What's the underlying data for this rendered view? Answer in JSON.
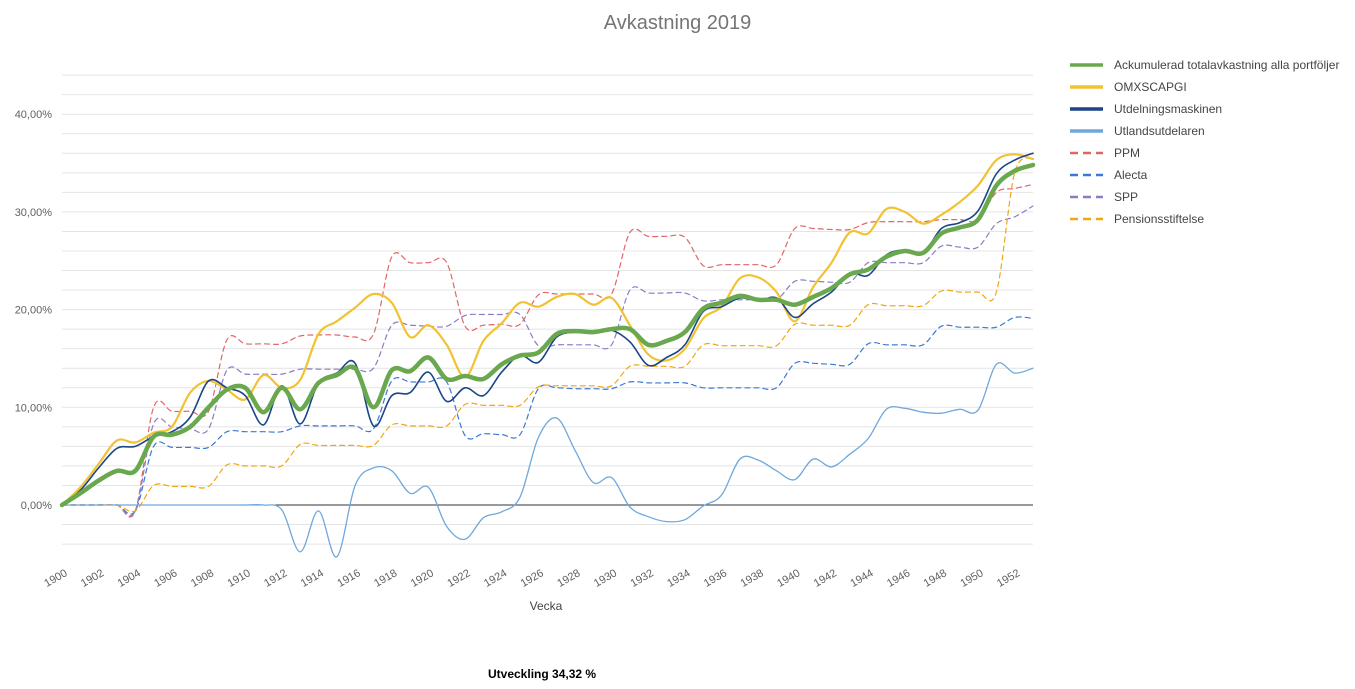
{
  "chart_data": {
    "type": "line",
    "title": "Avkastning 2019",
    "xlabel": "Vecka",
    "ylabel": "",
    "x": [
      1900,
      1901,
      1902,
      1903,
      1904,
      1905,
      1906,
      1907,
      1908,
      1909,
      1910,
      1911,
      1912,
      1913,
      1914,
      1915,
      1916,
      1917,
      1918,
      1919,
      1920,
      1921,
      1922,
      1923,
      1924,
      1925,
      1926,
      1927,
      1928,
      1929,
      1930,
      1931,
      1932,
      1933,
      1934,
      1935,
      1936,
      1937,
      1938,
      1939,
      1940,
      1941,
      1942,
      1943,
      1944,
      1945,
      1946,
      1947,
      1948,
      1949,
      1950,
      1951,
      1952,
      1953
    ],
    "x_tick_labels": [
      "1900",
      "1902",
      "1904",
      "1906",
      "1908",
      "1910",
      "1912",
      "1914",
      "1916",
      "1918",
      "1920",
      "1922",
      "1924",
      "1926",
      "1928",
      "1930",
      "1932",
      "1934",
      "1936",
      "1938",
      "1940",
      "1942",
      "1944",
      "1946",
      "1948",
      "1950",
      "1952"
    ],
    "y_ticks": [
      0,
      10,
      20,
      30,
      40
    ],
    "y_tick_labels": [
      "0,00%",
      "10,00%",
      "20,00%",
      "30,00%",
      "40,00%"
    ],
    "ylim": [
      -5.5,
      45
    ],
    "grid": true,
    "legend_position": "right",
    "series": [
      {
        "name": "Ackumulerad totalavkastning alla portföljer",
        "color": "#6aa84f",
        "width": 4.5,
        "dashed": false,
        "values": [
          0,
          1.2,
          2.5,
          3.5,
          3.5,
          7,
          7.2,
          8,
          10,
          11.8,
          12,
          9.5,
          12,
          9.8,
          12.5,
          13.3,
          14,
          10,
          13.8,
          13.7,
          15.1,
          12.9,
          13.2,
          12.9,
          14.4,
          15.3,
          15.6,
          17.5,
          17.8,
          17.7,
          18,
          18,
          16.4,
          16.8,
          17.7,
          20.1,
          20.7,
          21.4,
          21,
          21,
          20.5,
          21.3,
          22.2,
          23.6,
          24.1,
          25.4,
          26,
          25.8,
          27.8,
          28.4,
          29.2,
          32.7,
          34.2,
          34.8
        ]
      },
      {
        "name": "OMXSCAPGI",
        "color": "#f1c232",
        "width": 2.2,
        "dashed": false,
        "values": [
          0,
          1.8,
          4.2,
          6.6,
          6.4,
          7.4,
          8,
          11.5,
          12.7,
          11.8,
          10.8,
          13.3,
          12,
          12.8,
          17.5,
          18.8,
          20.2,
          21.6,
          20.7,
          17.2,
          18.4,
          16.4,
          13.1,
          16.8,
          18.6,
          20.7,
          20.3,
          21.3,
          21.6,
          20.5,
          21.2,
          18.4,
          15.4,
          14.8,
          16,
          19.1,
          20.3,
          23.2,
          23.3,
          21.8,
          18.8,
          22.3,
          24.8,
          27.9,
          27.8,
          30.3,
          30,
          28.8,
          29.7,
          31,
          32.7,
          35.3,
          35.9,
          35.4
        ]
      },
      {
        "name": "Utdelningsmaskinen",
        "color": "#1c4587",
        "width": 1.6,
        "dashed": false,
        "values": [
          0,
          1.5,
          3.8,
          5.8,
          6,
          7,
          7.5,
          9,
          12.7,
          12,
          11.2,
          8.2,
          12.2,
          8.3,
          12.5,
          13.5,
          14.5,
          8.1,
          11.2,
          11.5,
          13.6,
          10.6,
          12,
          11.2,
          13.6,
          15.3,
          14.6,
          17.2,
          17.7,
          17.8,
          17.9,
          16.7,
          14.3,
          15.1,
          16.4,
          19.8,
          20.3,
          21.2,
          20.9,
          21.2,
          19.2,
          20.6,
          21.8,
          23.7,
          23.5,
          25.6,
          26.1,
          25.8,
          28.3,
          28.9,
          30.1,
          33.9,
          35.3,
          36
        ]
      },
      {
        "name": "Utlandsutdelaren",
        "color": "#6fa8dc",
        "width": 1.3,
        "dashed": false,
        "values": [
          0,
          0,
          0,
          0,
          0,
          0,
          0,
          0,
          0,
          0,
          0,
          0,
          -0.5,
          -4.8,
          -0.6,
          -5.3,
          2,
          3.8,
          3.5,
          1.2,
          1.8,
          -2.2,
          -3.5,
          -1.3,
          -0.7,
          0.8,
          6.9,
          8.9,
          5.6,
          2.3,
          2.8,
          -0.2,
          -1.2,
          -1.7,
          -1.5,
          -0.1,
          1,
          4.7,
          4.6,
          3.5,
          2.6,
          4.7,
          3.9,
          5.2,
          6.8,
          9.8,
          9.9,
          9.5,
          9.4,
          9.8,
          9.7,
          14.4,
          13.5,
          14
        ]
      },
      {
        "name": "PPM",
        "color": "#e06666",
        "width": 1.2,
        "dashed": true,
        "values": [
          0,
          0,
          0,
          0,
          -0.6,
          10,
          9.6,
          9.6,
          9.6,
          16.9,
          16.5,
          16.5,
          16.5,
          17.3,
          17.4,
          17.4,
          17.2,
          17.5,
          25.4,
          24.8,
          24.8,
          24.8,
          18.3,
          18.4,
          18.5,
          18.5,
          21.5,
          21.6,
          21.6,
          21.6,
          21.6,
          27.9,
          27.5,
          27.5,
          27.4,
          24.5,
          24.6,
          24.6,
          24.6,
          24.6,
          28.3,
          28.3,
          28.2,
          28.2,
          28.9,
          29,
          29,
          29,
          29.2,
          29.2,
          29.2,
          32,
          32.4,
          32.8
        ]
      },
      {
        "name": "Alecta",
        "color": "#3c78d8",
        "width": 1.2,
        "dashed": true,
        "values": [
          0,
          0,
          0,
          0,
          -0.6,
          6,
          5.9,
          5.9,
          5.9,
          7.5,
          7.5,
          7.5,
          7.5,
          8.1,
          8.1,
          8.1,
          8.1,
          7.8,
          12.7,
          12.6,
          12.6,
          12.6,
          7.1,
          7.3,
          7.2,
          7.2,
          11.9,
          12,
          11.9,
          11.9,
          11.9,
          12.6,
          12.5,
          12.5,
          12.5,
          12,
          12,
          12,
          12,
          12,
          14.5,
          14.5,
          14.4,
          14.4,
          16.5,
          16.4,
          16.4,
          16.4,
          18.3,
          18.2,
          18.2,
          18.2,
          19.2,
          19.1
        ]
      },
      {
        "name": "SPP",
        "color": "#8e7cc3",
        "width": 1.2,
        "dashed": true,
        "values": [
          0,
          0,
          0,
          0,
          -0.6,
          8.3,
          8,
          7.8,
          7.8,
          13.8,
          13.4,
          13.4,
          13.4,
          13.9,
          13.9,
          13.9,
          13.9,
          14,
          18.4,
          18.4,
          18.3,
          18.3,
          19.4,
          19.5,
          19.5,
          19.5,
          16.3,
          16.4,
          16.4,
          16.4,
          16.4,
          22,
          21.7,
          21.7,
          21.7,
          20.9,
          21,
          21,
          21,
          21,
          22.9,
          22.9,
          22.8,
          22.8,
          24.8,
          24.8,
          24.8,
          24.8,
          26.5,
          26.4,
          26.4,
          28.8,
          29.5,
          30.6
        ]
      },
      {
        "name": "Pensionsstiftelse",
        "color": "#f1a713",
        "width": 1.2,
        "dashed": true,
        "values": [
          0,
          0,
          0,
          0,
          -0.6,
          2,
          1.9,
          1.9,
          1.9,
          4.1,
          4,
          4,
          4,
          6.2,
          6.1,
          6.1,
          6.1,
          6.1,
          8.2,
          8.1,
          8.1,
          8.1,
          10.3,
          10.2,
          10.2,
          10.2,
          12.1,
          12.2,
          12.2,
          12.2,
          12.2,
          14.2,
          14.2,
          14.2,
          14.2,
          16.4,
          16.3,
          16.3,
          16.3,
          16.3,
          18.5,
          18.4,
          18.4,
          18.4,
          20.5,
          20.4,
          20.4,
          20.4,
          21.9,
          21.8,
          21.8,
          21.8,
          34,
          35.5
        ]
      }
    ]
  },
  "footer": {
    "text": "Utveckling 34,32 %"
  }
}
